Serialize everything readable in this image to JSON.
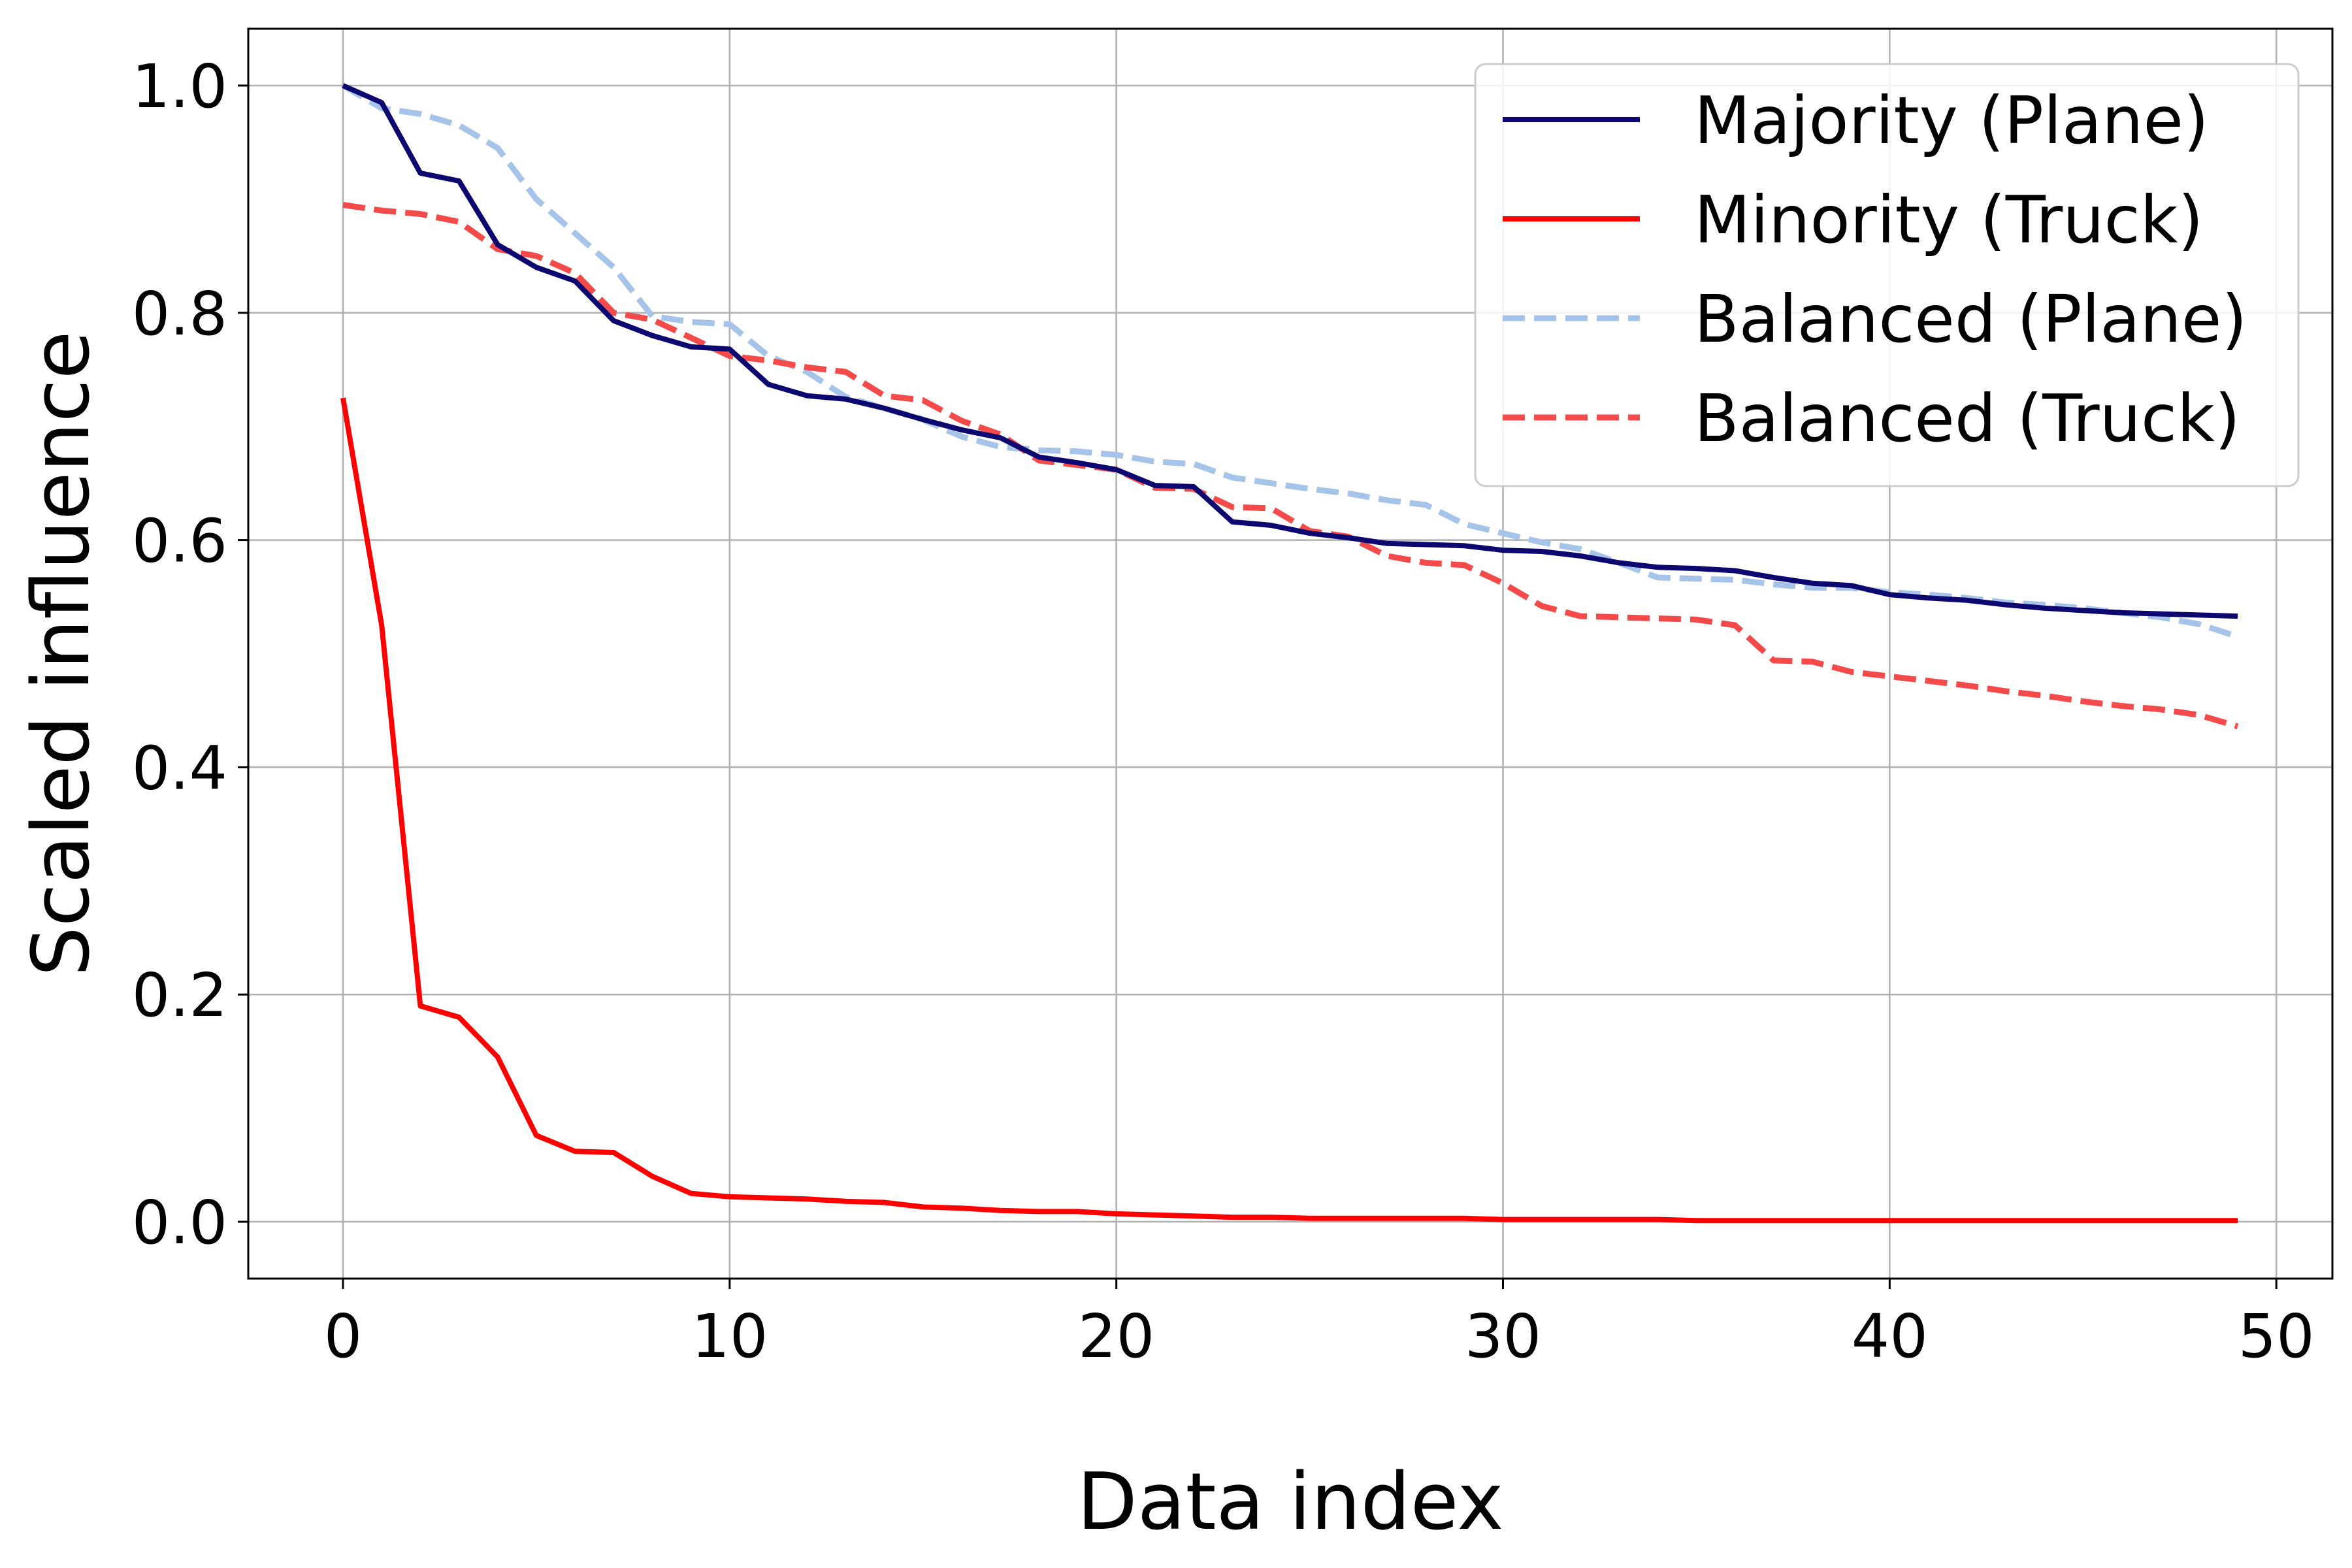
{
  "chart_data": {
    "type": "line",
    "title": "",
    "xlabel": "Data index",
    "ylabel": "Scaled influence",
    "xlim": [
      -2.45,
      51.45
    ],
    "ylim": [
      -0.05,
      1.05
    ],
    "xticks": [
      0,
      10,
      20,
      30,
      40,
      50
    ],
    "yticks": [
      0.0,
      0.2,
      0.4,
      0.6,
      0.8,
      1.0
    ],
    "xtick_labels": [
      "0",
      "10",
      "20",
      "30",
      "40",
      "50"
    ],
    "ytick_labels": [
      "0.0",
      "0.2",
      "0.4",
      "0.6",
      "0.8",
      "1.0"
    ],
    "grid": true,
    "legend_position": "top-right",
    "x": [
      0,
      1,
      2,
      3,
      4,
      5,
      6,
      7,
      8,
      9,
      10,
      11,
      12,
      13,
      14,
      15,
      16,
      17,
      18,
      19,
      20,
      21,
      22,
      23,
      24,
      25,
      26,
      27,
      28,
      29,
      30,
      31,
      32,
      33,
      34,
      35,
      36,
      37,
      38,
      39,
      40,
      41,
      42,
      43,
      44,
      45,
      46,
      47,
      48,
      49
    ],
    "series": [
      {
        "name": "Majority (Plane)",
        "color": "#0d0870",
        "dash": "solid",
        "values": [
          1.0,
          0.985,
          0.923,
          0.916,
          0.86,
          0.84,
          0.828,
          0.793,
          0.78,
          0.77,
          0.768,
          0.737,
          0.727,
          0.724,
          0.716,
          0.706,
          0.697,
          0.69,
          0.673,
          0.668,
          0.662,
          0.648,
          0.647,
          0.616,
          0.613,
          0.606,
          0.602,
          0.597,
          0.596,
          0.595,
          0.591,
          0.59,
          0.586,
          0.58,
          0.576,
          0.575,
          0.573,
          0.567,
          0.562,
          0.56,
          0.552,
          0.549,
          0.547,
          0.543,
          0.54,
          0.538,
          0.536,
          0.535,
          0.534,
          0.533
        ]
      },
      {
        "name": "Minority (Truck)",
        "color": "#ff0000",
        "dash": "solid",
        "values": [
          0.725,
          0.525,
          0.19,
          0.18,
          0.145,
          0.076,
          0.062,
          0.061,
          0.04,
          0.025,
          0.022,
          0.021,
          0.02,
          0.018,
          0.017,
          0.013,
          0.012,
          0.01,
          0.009,
          0.009,
          0.007,
          0.006,
          0.005,
          0.004,
          0.004,
          0.003,
          0.003,
          0.003,
          0.003,
          0.003,
          0.002,
          0.002,
          0.002,
          0.002,
          0.002,
          0.001,
          0.001,
          0.001,
          0.001,
          0.001,
          0.001,
          0.001,
          0.001,
          0.001,
          0.001,
          0.001,
          0.001,
          0.001,
          0.001,
          0.001
        ]
      },
      {
        "name": "Balanced (Plane)",
        "color": "#a6c4ea",
        "dash": "dashed",
        "values": [
          1.0,
          0.98,
          0.975,
          0.965,
          0.945,
          0.9,
          0.87,
          0.84,
          0.797,
          0.792,
          0.79,
          0.762,
          0.748,
          0.726,
          0.716,
          0.706,
          0.691,
          0.682,
          0.679,
          0.678,
          0.675,
          0.669,
          0.667,
          0.655,
          0.65,
          0.645,
          0.641,
          0.635,
          0.631,
          0.614,
          0.606,
          0.598,
          0.592,
          0.58,
          0.567,
          0.566,
          0.565,
          0.561,
          0.558,
          0.558,
          0.554,
          0.552,
          0.549,
          0.545,
          0.543,
          0.54,
          0.536,
          0.532,
          0.526,
          0.515
        ]
      },
      {
        "name": "Balanced (Truck)",
        "color": "#f54a4a",
        "dash": "dashed",
        "values": [
          0.895,
          0.89,
          0.887,
          0.88,
          0.856,
          0.85,
          0.835,
          0.8,
          0.794,
          0.778,
          0.762,
          0.758,
          0.752,
          0.748,
          0.727,
          0.723,
          0.705,
          0.693,
          0.67,
          0.666,
          0.662,
          0.646,
          0.645,
          0.629,
          0.628,
          0.608,
          0.603,
          0.586,
          0.58,
          0.578,
          0.562,
          0.542,
          0.533,
          0.532,
          0.531,
          0.53,
          0.525,
          0.494,
          0.493,
          0.484,
          0.48,
          0.476,
          0.472,
          0.467,
          0.463,
          0.458,
          0.454,
          0.451,
          0.446,
          0.436
        ]
      }
    ]
  }
}
